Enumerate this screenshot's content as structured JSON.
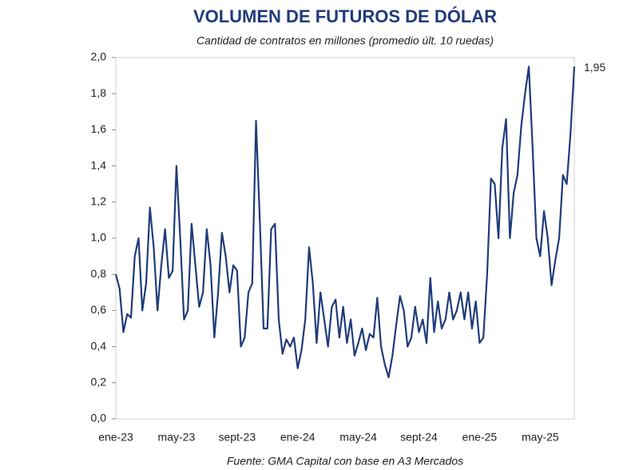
{
  "chart_data": {
    "type": "line",
    "title": "VOLUMEN DE FUTUROS DE DÓLAR",
    "subtitle": "Cantidad de contratos en millones (promedio últ. 10 ruedas)",
    "source": "Fuente: GMA Capital con base en A3 Mercados",
    "annotation": "1,95",
    "color": "#1f3b7a",
    "grid": false,
    "categories": [
      "ene-23",
      null,
      null,
      null,
      null,
      null,
      null,
      null,
      null,
      null,
      null,
      null,
      null,
      null,
      null,
      null,
      "may-23",
      null,
      null,
      null,
      null,
      null,
      null,
      null,
      null,
      null,
      null,
      null,
      null,
      null,
      null,
      null,
      "sept-23",
      null,
      null,
      null,
      null,
      null,
      null,
      null,
      null,
      null,
      null,
      null,
      null,
      null,
      null,
      null,
      "ene-24",
      null,
      null,
      null,
      null,
      null,
      null,
      null,
      null,
      null,
      null,
      null,
      null,
      null,
      null,
      null,
      "may-24",
      null,
      null,
      null,
      null,
      null,
      null,
      null,
      null,
      null,
      null,
      null,
      null,
      null,
      null,
      null,
      "sept-24",
      null,
      null,
      null,
      null,
      null,
      null,
      null,
      null,
      null,
      null,
      null,
      null,
      null,
      null,
      null,
      "ene-25",
      null,
      null,
      null,
      null,
      null,
      null,
      null,
      null,
      null,
      null,
      null,
      null,
      null,
      null,
      null,
      "may-25",
      null,
      null,
      null,
      null,
      null,
      null,
      null,
      null,
      null
    ],
    "values": [
      0.8,
      0.72,
      0.48,
      0.58,
      0.56,
      0.9,
      1.0,
      0.6,
      0.75,
      1.17,
      0.95,
      0.6,
      0.85,
      1.05,
      0.78,
      0.82,
      1.4,
      1.0,
      0.55,
      0.6,
      1.08,
      0.85,
      0.62,
      0.7,
      1.05,
      0.85,
      0.45,
      0.7,
      1.03,
      0.9,
      0.7,
      0.85,
      0.82,
      0.4,
      0.45,
      0.7,
      0.75,
      1.65,
      1.1,
      0.5,
      0.5,
      1.05,
      1.08,
      0.55,
      0.36,
      0.44,
      0.4,
      0.45,
      0.28,
      0.38,
      0.55,
      0.95,
      0.75,
      0.42,
      0.7,
      0.55,
      0.4,
      0.62,
      0.66,
      0.45,
      0.62,
      0.42,
      0.55,
      0.35,
      0.42,
      0.5,
      0.38,
      0.47,
      0.45,
      0.67,
      0.4,
      0.3,
      0.23,
      0.35,
      0.52,
      0.68,
      0.6,
      0.4,
      0.45,
      0.62,
      0.48,
      0.55,
      0.42,
      0.78,
      0.48,
      0.65,
      0.5,
      0.55,
      0.7,
      0.55,
      0.6,
      0.7,
      0.55,
      0.7,
      0.5,
      0.65,
      0.42,
      0.45,
      0.8,
      1.33,
      1.3,
      1.0,
      1.5,
      1.66,
      1.0,
      1.25,
      1.35,
      1.62,
      1.8,
      1.95,
      1.5,
      1.0,
      0.9,
      1.15,
      1.0,
      0.74,
      0.88,
      1.0,
      1.35,
      1.3,
      1.58,
      1.95
    ],
    "ylim": [
      0,
      2
    ],
    "yticks": [
      {
        "value": 0,
        "label": "0,0"
      },
      {
        "value": 0.2,
        "label": "0,2"
      },
      {
        "value": 0.4,
        "label": "0,4"
      },
      {
        "value": 0.6,
        "label": "0,6"
      },
      {
        "value": 0.8,
        "label": "0,8"
      },
      {
        "value": 1,
        "label": "1,0"
      },
      {
        "value": 1.2,
        "label": "1,2"
      },
      {
        "value": 1.4,
        "label": "1,4"
      },
      {
        "value": 1.6,
        "label": "1,6"
      },
      {
        "value": 1.8,
        "label": "1,8"
      },
      {
        "value": 2,
        "label": "2,0"
      }
    ]
  }
}
